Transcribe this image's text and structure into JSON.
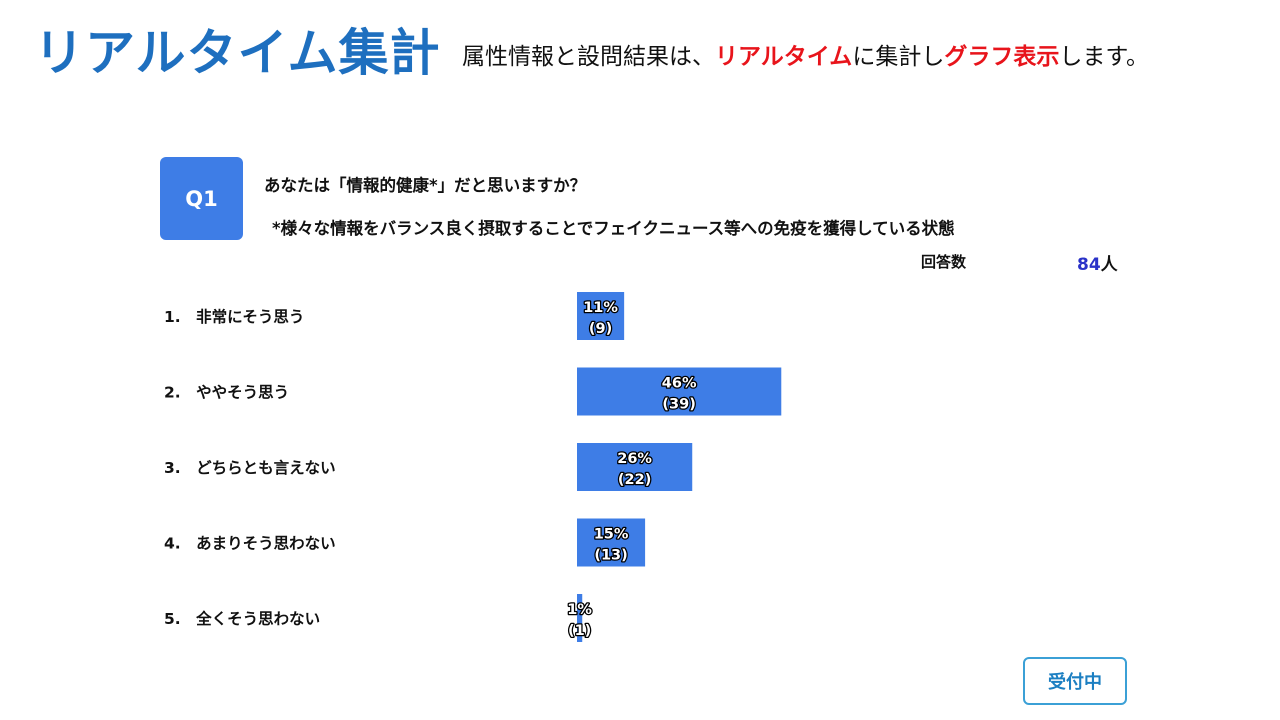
{
  "header": {
    "title": "リアルタイム集計",
    "subtitle_part1": "属性情報と設問結果は、",
    "subtitle_highlight1": "リアルタイム",
    "subtitle_part2": "に集計し",
    "subtitle_highlight2": "グラフ表示",
    "subtitle_part3": "します。"
  },
  "question": {
    "badge": "Q1",
    "text": "あなたは「情報的健康*」だと思いますか？",
    "note": "*様々な情報をバランス良く摂取することでフェイクニュース等への免疫を獲得している状態"
  },
  "responses": {
    "label": "回答数",
    "count": "84",
    "unit": "人"
  },
  "status_button": {
    "label": "受付中"
  },
  "colors": {
    "title": "#1e6fbf",
    "highlight": "#e8141b",
    "bar": "#3e7de6",
    "count": "#2a32c8",
    "button_border": "#3ba0d6"
  },
  "chart_data": {
    "type": "bar",
    "orientation": "horizontal",
    "categories": [
      "1.　非常にそう思う",
      "2.　ややそう思う",
      "3.　どちらとも言えない",
      "4.　あまりそう思わない",
      "5.　全くそう思わない"
    ],
    "series": [
      {
        "percent_labels": [
          "11%",
          "46%",
          "26%",
          "15%",
          "1%"
        ],
        "values": [
          9,
          39,
          22,
          13,
          1
        ],
        "count_labels": [
          "(9)",
          "(39)",
          "(22)",
          "(13)",
          "(1)"
        ]
      }
    ],
    "xlim": [
      0,
      100
    ]
  }
}
